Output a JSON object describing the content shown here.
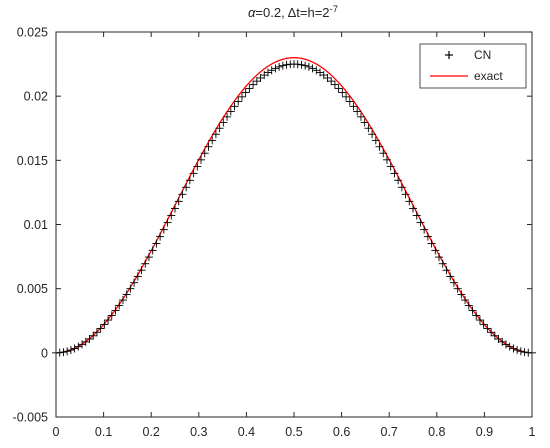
{
  "chart_data": {
    "type": "line",
    "title": {
      "alpha_symbol": "α",
      "alpha_rest": "=0.2, ",
      "delta_symbol": "Δ",
      "rest": "t=h=2",
      "exponent": "-7"
    },
    "xlabel": "",
    "ylabel": "",
    "xlim": [
      0,
      1
    ],
    "ylim": [
      -0.005,
      0.025
    ],
    "xticks": [
      0,
      0.1,
      0.2,
      0.3,
      0.4,
      0.5,
      0.6,
      0.7,
      0.8,
      0.9,
      1
    ],
    "xtick_labels": [
      "0",
      "0.1",
      "0.2",
      "0.3",
      "0.4",
      "0.5",
      "0.6",
      "0.7",
      "0.8",
      "0.9",
      "1"
    ],
    "yticks": [
      -0.005,
      0,
      0.005,
      0.01,
      0.015,
      0.02,
      0.025
    ],
    "ytick_labels": [
      "-0.005",
      "0",
      "0.005",
      "0.01",
      "0.015",
      "0.02",
      "0.025"
    ],
    "grid": false,
    "legend_position": "top-right",
    "series": [
      {
        "name": "CN",
        "style": "markers",
        "marker": "+",
        "color": "#000000",
        "x_start": 0,
        "x_end": 1,
        "x_step": 0.0078125,
        "peak": 0.0225,
        "shape": "sin^2(pi x)"
      },
      {
        "name": "exact",
        "style": "line",
        "color": "#ff0000",
        "x_start": 0,
        "x_end": 1,
        "peak": 0.023,
        "shape": "sin^2(pi x)"
      }
    ]
  }
}
